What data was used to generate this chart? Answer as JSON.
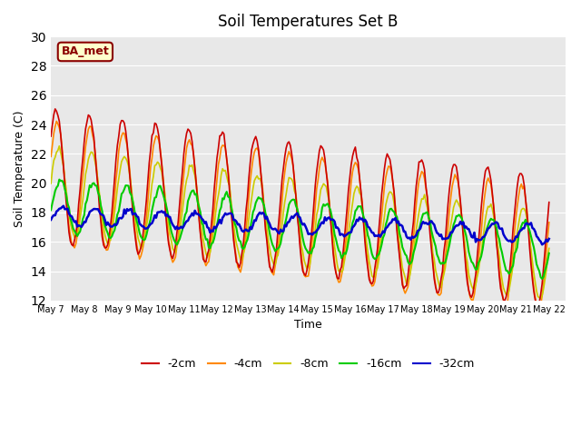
{
  "title": "Soil Temperatures Set B",
  "xlabel": "Time",
  "ylabel": "Soil Temperature (C)",
  "ylim": [
    12,
    30
  ],
  "yticks": [
    12,
    14,
    16,
    18,
    20,
    22,
    24,
    26,
    28,
    30
  ],
  "xlim": [
    0,
    15.5
  ],
  "plot_bg": "#e8e8e8",
  "legend_labels": [
    "-2cm",
    "-4cm",
    "-8cm",
    "-16cm",
    "-32cm"
  ],
  "legend_colors": [
    "#cc0000",
    "#ff8800",
    "#cccc00",
    "#00cc00",
    "#0000cc"
  ],
  "annotation_text": "BA_met",
  "annotation_color": "#8b0000",
  "annotation_bg": "#ffffcc",
  "start_day": 7,
  "end_day": 22
}
